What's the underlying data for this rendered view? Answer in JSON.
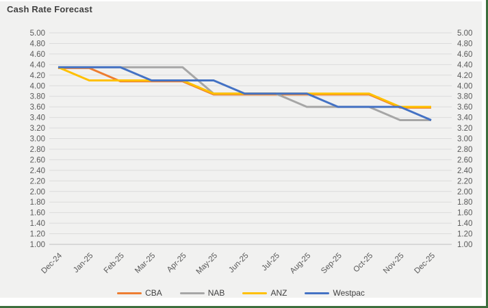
{
  "title": "Cash Rate Forecast",
  "chart_data": {
    "type": "line",
    "title": "Cash Rate Forecast",
    "categories": [
      "Dec-24",
      "Jan-25",
      "Feb-25",
      "Mar-25",
      "Apr-25",
      "May-25",
      "Jun-25",
      "Jul-25",
      "Aug-25",
      "Sep-25",
      "Oct-25",
      "Nov-25",
      "Dec-25"
    ],
    "series": [
      {
        "name": "CBA",
        "color": "#ED7D31",
        "values": [
          4.35,
          4.35,
          4.1,
          4.1,
          4.1,
          3.85,
          3.85,
          3.85,
          3.85,
          3.85,
          3.85,
          3.6,
          3.6
        ]
      },
      {
        "name": "NAB",
        "color": "#A6A6A6",
        "values": [
          4.35,
          4.35,
          4.35,
          4.35,
          4.35,
          3.85,
          3.85,
          3.85,
          3.6,
          3.6,
          3.6,
          3.35,
          3.35
        ]
      },
      {
        "name": "ANZ",
        "color": "#FFC000",
        "values": [
          4.35,
          4.1,
          4.1,
          4.1,
          4.1,
          3.85,
          3.85,
          3.85,
          3.85,
          3.85,
          3.85,
          3.6,
          3.6
        ]
      },
      {
        "name": "Westpac",
        "color": "#4472C4",
        "values": [
          4.35,
          4.35,
          4.35,
          4.1,
          4.1,
          4.1,
          3.85,
          3.85,
          3.85,
          3.6,
          3.6,
          3.6,
          3.35
        ]
      }
    ],
    "y_axis": {
      "min": 1.0,
      "max": 5.0,
      "step": 0.2,
      "decimals": 2,
      "sides": [
        "left",
        "right"
      ]
    },
    "x_axis": {
      "label_rotation_deg": 45
    },
    "grid": true,
    "legend_position": "bottom",
    "colors": {
      "panel_background": "#F1F1F0",
      "gridline": "#DBDBDB",
      "axis_line": "#C0C0C0",
      "axis_text": "#595959",
      "title_text": "#404040",
      "legend_text": "#404040",
      "border_green": "#3C6E3C"
    }
  }
}
